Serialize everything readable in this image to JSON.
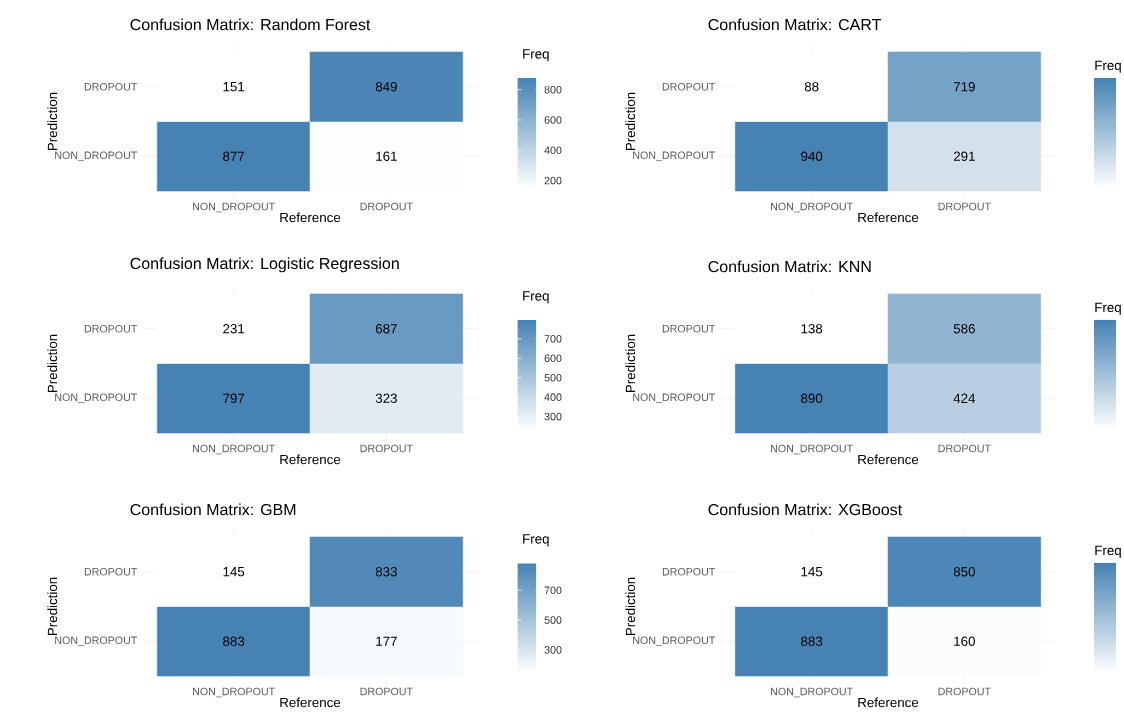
{
  "chart_data": [
    {
      "type": "heatmap",
      "title": "Confusion Matrix: Random Forest",
      "xlabel": "Reference",
      "ylabel": "Prediction",
      "categories": [
        "NON_DROPOUT",
        "DROPOUT"
      ],
      "y_categories": [
        "DROPOUT",
        "NON_DROPOUT"
      ],
      "cells": [
        [
          151,
          849
        ],
        [
          877,
          161
        ]
      ],
      "data_labels": true,
      "clabel": "Freq",
      "clim": [
        151,
        877
      ],
      "cticks": [
        200,
        400,
        600,
        800
      ],
      "color": "#4682b4",
      "grid": true
    },
    {
      "type": "heatmap",
      "title": "Confusion Matrix: CART",
      "xlabel": "Reference",
      "ylabel": "Prediction",
      "categories": [
        "NON_DROPOUT",
        "DROPOUT"
      ],
      "y_categories": [
        "DROPOUT",
        "NON_DROPOUT"
      ],
      "cells": [
        [
          88,
          719
        ],
        [
          940,
          291
        ]
      ],
      "data_labels": true,
      "clabel": "Freq",
      "color": "#4682b4",
      "grid": true
    },
    {
      "type": "heatmap",
      "title": "Confusion Matrix: Logistic Regression",
      "xlabel": "Reference",
      "ylabel": "Prediction",
      "categories": [
        "NON_DROPOUT",
        "DROPOUT"
      ],
      "y_categories": [
        "DROPOUT",
        "NON_DROPOUT"
      ],
      "cells": [
        [
          231,
          687
        ],
        [
          797,
          323
        ]
      ],
      "data_labels": true,
      "clabel": "Freq",
      "clim": [
        231,
        797
      ],
      "cticks": [
        300,
        400,
        500,
        600,
        700
      ],
      "color": "#4682b4",
      "grid": true
    },
    {
      "type": "heatmap",
      "title": "Confusion Matrix: KNN",
      "xlabel": "Reference",
      "ylabel": "Prediction",
      "categories": [
        "NON_DROPOUT",
        "DROPOUT"
      ],
      "y_categories": [
        "DROPOUT",
        "NON_DROPOUT"
      ],
      "cells": [
        [
          138,
          586
        ],
        [
          890,
          424
        ]
      ],
      "data_labels": true,
      "clabel": "Freq",
      "color": "#4682b4",
      "grid": true
    },
    {
      "type": "heatmap",
      "title": "Confusion Matrix: GBM",
      "xlabel": "Reference",
      "ylabel": "Prediction",
      "categories": [
        "NON_DROPOUT",
        "DROPOUT"
      ],
      "y_categories": [
        "DROPOUT",
        "NON_DROPOUT"
      ],
      "cells": [
        [
          145,
          833
        ],
        [
          883,
          177
        ]
      ],
      "data_labels": true,
      "clabel": "Freq",
      "clim": [
        145,
        883
      ],
      "cticks": [
        300,
        500,
        700
      ],
      "color": "#4682b4",
      "grid": true
    },
    {
      "type": "heatmap",
      "title": "Confusion Matrix: XGBoost",
      "xlabel": "Reference",
      "ylabel": "Prediction",
      "categories": [
        "NON_DROPOUT",
        "DROPOUT"
      ],
      "y_categories": [
        "DROPOUT",
        "NON_DROPOUT"
      ],
      "cells": [
        [
          145,
          850
        ],
        [
          883,
          160
        ]
      ],
      "data_labels": true,
      "clabel": "Freq",
      "color": "#4682b4",
      "grid": true
    }
  ]
}
